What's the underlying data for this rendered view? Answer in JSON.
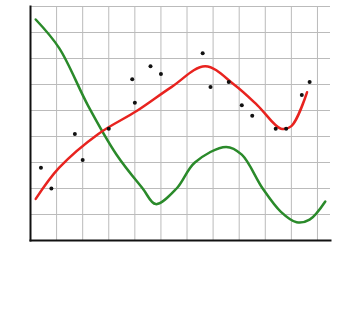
{
  "chart_data": {
    "type": "line",
    "xlim": [
      0,
      11.5
    ],
    "ylim": [
      0,
      9
    ],
    "xticks": [
      0,
      1,
      2,
      3,
      4,
      5,
      6,
      7,
      8,
      9,
      10,
      11
    ],
    "yticks": [
      0,
      1,
      2,
      3,
      4,
      5,
      6,
      7,
      8,
      9
    ],
    "grid": true,
    "tick_labels": false,
    "series": [
      {
        "type": "line",
        "color": "#2a8a2a",
        "line_style": "solid",
        "x": [
          0.2,
          1.1,
          2.2,
          3.3,
          4.3,
          4.8,
          5.6,
          6.3,
          7.5,
          8.1,
          8.9,
          9.6,
          10.2,
          10.7,
          11.3
        ],
        "values": [
          8.5,
          7.4,
          5.2,
          3.3,
          2.0,
          1.4,
          2.0,
          3.0,
          3.6,
          3.3,
          2.0,
          1.1,
          0.7,
          0.8,
          1.5
        ]
      },
      {
        "type": "line",
        "color": "#e8231f",
        "line_style": "solid",
        "x": [
          0.2,
          1.1,
          2.6,
          4.1,
          5.4,
          6.7,
          7.8,
          8.7,
          9.6,
          10.0,
          10.6
        ],
        "values": [
          1.6,
          2.8,
          4.1,
          5.0,
          5.9,
          6.7,
          6.0,
          5.2,
          4.3,
          4.4,
          5.7
        ]
      },
      {
        "type": "scatter",
        "color": "#111111",
        "marker": "dot",
        "x": [
          0.4,
          0.8,
          1.7,
          2.0,
          3.0,
          3.9,
          4.0,
          4.6,
          5.0,
          6.6,
          6.9,
          7.6,
          8.1,
          8.5,
          9.4,
          9.8,
          10.4,
          10.7
        ],
        "values": [
          2.8,
          2.0,
          4.1,
          3.1,
          4.3,
          6.2,
          5.3,
          6.7,
          6.4,
          7.2,
          5.9,
          6.1,
          5.2,
          4.8,
          4.3,
          4.3,
          5.6,
          6.1
        ]
      }
    ]
  }
}
